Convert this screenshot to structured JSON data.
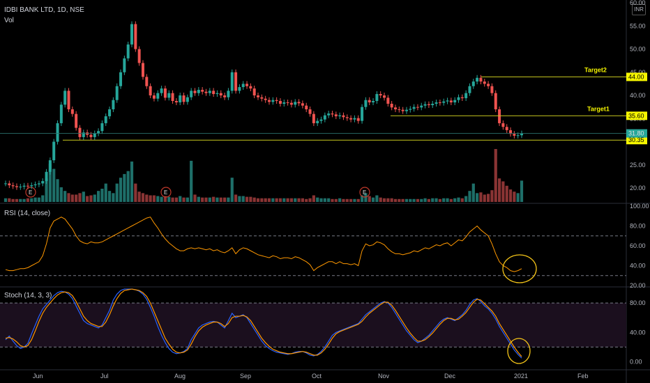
{
  "header": {
    "symbol": "IDBI BANK LTD, 1D, NSE",
    "volume_label": "Vol",
    "currency": "INR"
  },
  "colors": {
    "up": "#26a69a",
    "down": "#ef5350",
    "vol_up": "#1e6f69",
    "vol_down": "#8a3434",
    "level_line": "#c8c81e",
    "level_label_bg": "#f5f500",
    "osc_line": "#ff9800",
    "stoch_k": "#2962ff",
    "stoch_band": "#1b0f1e",
    "highlight": "#f5c518"
  },
  "chart_data": [
    {
      "type": "candlestick",
      "ylim": [
        17,
        60
      ],
      "y_ticks": [
        "60.00",
        "55.00",
        "50.00",
        "45.00",
        "40.00",
        "35.00",
        "30.00",
        "25.00",
        "20.00"
      ],
      "x_ticks": [
        "Jun",
        "Jul",
        "Aug",
        "Sep",
        "Oct",
        "Nov",
        "Dec",
        "2021",
        "Feb"
      ],
      "close": [
        21,
        20.6,
        20.4,
        20.2,
        20.3,
        20.5,
        20.4,
        20.6,
        20.8,
        21,
        21.5,
        23.5,
        26,
        30,
        34,
        38,
        41,
        37,
        36,
        33,
        31,
        32,
        31.5,
        31,
        31.8,
        32.3,
        34,
        35.5,
        37,
        39,
        42,
        45,
        48,
        51,
        55.4,
        50,
        47,
        44,
        42,
        40,
        39.3,
        40.5,
        41.5,
        39.5,
        40.5,
        38.8,
        38.5,
        40,
        38.6,
        39.6,
        41,
        40.5,
        41.2,
        40.8,
        40.5,
        41,
        40.3,
        40.5,
        40,
        39.6,
        41,
        45,
        41,
        41.8,
        42.5,
        42,
        41.5,
        40,
        39.6,
        39.3,
        39,
        38.6,
        39,
        38.8,
        38.2,
        38.5,
        38.4,
        38,
        38.6,
        38.3,
        37.8,
        37,
        36,
        34,
        34.5,
        34.8,
        35.7,
        36.1,
        35.9,
        35.5,
        35.7,
        35.3,
        35.1,
        34.8,
        35.1,
        34.5,
        37.5,
        39,
        38.5,
        38.8,
        40.3,
        40,
        39.5,
        38.2,
        37.4,
        37,
        36.9,
        36.6,
        36.9,
        37.1,
        37.5,
        37.4,
        37.8,
        38.1,
        37.9,
        38.2,
        38.5,
        38.4,
        38.7,
        38.9,
        38.5,
        39,
        39.6,
        39.4,
        40.5,
        42,
        43,
        43.8,
        43,
        42.5,
        42,
        40.5,
        37,
        34,
        33.2,
        32.5,
        31.7,
        31.3,
        31.4,
        31.8
      ],
      "volume": [
        0.5,
        0.5,
        0.4,
        0.4,
        0.4,
        0.4,
        0.5,
        0.5,
        0.6,
        0.6,
        0.9,
        3.2,
        5.2,
        4.5,
        3.1,
        2,
        1.5,
        1.2,
        1,
        1,
        1.2,
        1.4,
        0.8,
        0.9,
        1,
        1.5,
        1.8,
        2.5,
        1.5,
        1.2,
        2.5,
        3.3,
        3.8,
        4.2,
        5.5,
        2.5,
        1.4,
        1.2,
        1,
        0.9,
        0.9,
        0.8,
        0.7,
        0.8,
        0.7,
        0.6,
        0.6,
        0.8,
        0.6,
        0.6,
        5.6,
        1,
        0.7,
        0.6,
        0.6,
        0.6,
        0.7,
        0.6,
        0.6,
        0.6,
        0.6,
        3.3,
        1,
        0.8,
        0.8,
        0.7,
        0.7,
        0.6,
        0.5,
        0.5,
        0.5,
        0.5,
        0.5,
        0.5,
        0.5,
        0.5,
        0.5,
        0.5,
        0.5,
        0.5,
        0.5,
        0.4,
        0.5,
        0.9,
        0.6,
        0.5,
        0.5,
        0.5,
        0.4,
        0.4,
        0.5,
        0.4,
        0.4,
        0.4,
        0.4,
        0.4,
        0.9,
        1.2,
        0.8,
        0.6,
        0.9,
        0.6,
        0.5,
        0.5,
        0.5,
        0.4,
        0.4,
        0.4,
        0.4,
        0.4,
        0.4,
        0.4,
        0.4,
        0.5,
        0.4,
        0.5,
        0.5,
        0.4,
        0.5,
        0.5,
        0.4,
        0.5,
        0.6,
        0.5,
        0.8,
        1.5,
        2.5,
        1.2,
        1.3,
        1,
        1.1,
        1.6,
        7.2,
        3.2,
        2.8,
        2.2,
        1.7,
        1.4,
        1.2,
        2.9
      ],
      "levels": [
        {
          "value": 44.0,
          "label": "44.00",
          "name": "Target2"
        },
        {
          "value": 35.6,
          "label": "35.60",
          "name": "Target1"
        },
        {
          "value": 30.35,
          "label": "30.35",
          "name": ""
        }
      ],
      "last_price": {
        "value": 31.8,
        "label": "31.80"
      },
      "event_markers": [
        "E",
        "E",
        "E"
      ]
    },
    {
      "type": "line",
      "title": "RSI (14, close)",
      "ylim": [
        20,
        100
      ],
      "y_ticks": [
        "100.00",
        "80.00",
        "60.00",
        "40.00",
        "20.00"
      ],
      "guides": [
        70,
        30
      ],
      "values": [
        36,
        35,
        35,
        36,
        37,
        37,
        38,
        40,
        42,
        44,
        50,
        62,
        78,
        85,
        87,
        89,
        87,
        82,
        77,
        70,
        65,
        63,
        62,
        64,
        63,
        63,
        64,
        66,
        68,
        70,
        72,
        74,
        76,
        78,
        80,
        82,
        84,
        86,
        88,
        89,
        83,
        78,
        72,
        67,
        63,
        60,
        57,
        55,
        55,
        57,
        58,
        57,
        58,
        57,
        56,
        57,
        55,
        56,
        54,
        53,
        55,
        58,
        52,
        56,
        58,
        57,
        55,
        53,
        51,
        50,
        49,
        48,
        50,
        49,
        47,
        48,
        48,
        47,
        49,
        48,
        46,
        44,
        41,
        35,
        38,
        40,
        42,
        44,
        44,
        42,
        44,
        42,
        42,
        41,
        42,
        40,
        55,
        62,
        60,
        61,
        64,
        63,
        61,
        57,
        54,
        52,
        52,
        51,
        52,
        53,
        55,
        54,
        56,
        58,
        57,
        59,
        61,
        60,
        62,
        63,
        60,
        63,
        66,
        65,
        69,
        74,
        77,
        80,
        76,
        73,
        70,
        62,
        52,
        44,
        40,
        38,
        35,
        34,
        35,
        37
      ]
    },
    {
      "type": "line",
      "title": "Stoch (14, 3, 3)",
      "ylim": [
        -10,
        100
      ],
      "y_ticks": [
        "80.00",
        "40.00",
        "0.00"
      ],
      "guides": [
        80,
        20
      ],
      "series": [
        {
          "values": [
            30,
            35,
            28,
            22,
            18,
            20,
            25,
            38,
            50,
            62,
            72,
            78,
            84,
            90,
            94,
            96,
            95,
            92,
            86,
            76,
            66,
            56,
            52,
            50,
            48,
            46,
            50,
            60,
            70,
            84,
            92,
            97,
            99,
            99,
            99,
            98,
            96,
            92,
            85,
            74,
            62,
            48,
            36,
            26,
            18,
            13,
            11,
            12,
            14,
            18,
            30,
            38,
            46,
            50,
            52,
            54,
            55,
            54,
            50,
            46,
            56,
            66,
            60,
            62,
            64,
            60,
            52,
            44,
            36,
            28,
            22,
            18,
            15,
            13,
            12,
            11,
            10,
            11,
            13,
            14,
            14,
            12,
            9,
            8,
            10,
            14,
            20,
            28,
            36,
            40,
            42,
            44,
            46,
            48,
            50,
            52,
            58,
            64,
            68,
            72,
            76,
            80,
            82,
            80,
            74,
            66,
            58,
            50,
            42,
            36,
            30,
            26,
            28,
            32,
            36,
            42,
            48,
            54,
            58,
            60,
            58,
            56,
            60,
            64,
            70,
            78,
            84,
            86,
            82,
            76,
            72,
            66,
            58,
            48,
            40,
            32,
            24,
            16,
            10,
            5
          ]
        },
        {
          "values": [
            32,
            33,
            31,
            27,
            22,
            20,
            22,
            30,
            42,
            55,
            66,
            74,
            80,
            86,
            91,
            94,
            95,
            94,
            90,
            82,
            72,
            62,
            56,
            52,
            50,
            48,
            48,
            54,
            64,
            76,
            86,
            93,
            97,
            98,
            99,
            98,
            97,
            94,
            89,
            80,
            68,
            56,
            44,
            32,
            24,
            17,
            13,
            12,
            13,
            16,
            24,
            34,
            42,
            47,
            50,
            52,
            54,
            54,
            52,
            48,
            52,
            60,
            62,
            62,
            63,
            61,
            56,
            48,
            40,
            32,
            26,
            21,
            17,
            15,
            13,
            12,
            11,
            11,
            12,
            13,
            14,
            13,
            11,
            9,
            9,
            12,
            17,
            24,
            32,
            38,
            41,
            43,
            45,
            47,
            49,
            51,
            55,
            61,
            66,
            70,
            74,
            78,
            81,
            81,
            77,
            70,
            62,
            54,
            46,
            39,
            33,
            28,
            28,
            30,
            34,
            39,
            45,
            51,
            56,
            59,
            59,
            57,
            58,
            62,
            67,
            74,
            81,
            85,
            84,
            79,
            74,
            69,
            62,
            52,
            44,
            36,
            28,
            20,
            13,
            7
          ]
        }
      ]
    }
  ]
}
